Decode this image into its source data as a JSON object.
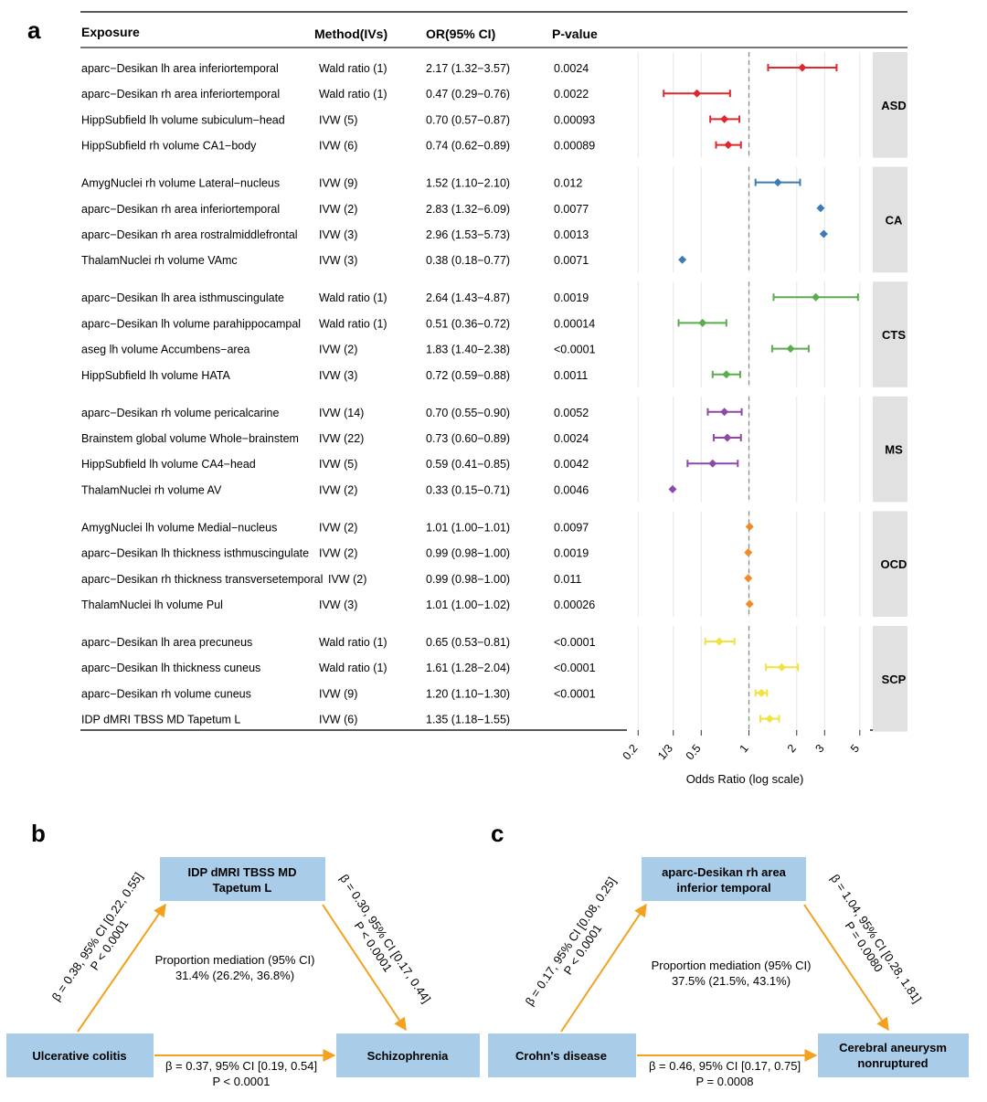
{
  "panel_labels": {
    "a": "a",
    "b": "b",
    "c": "c"
  },
  "colors": {
    "ASD": "#e0272b",
    "CA": "#3e7ab3",
    "CTS": "#5aac4c",
    "MS": "#8e48a6",
    "OCD": "#f08a24",
    "SCP": "#f2e23c",
    "mediation_arrow": "#f4a11f",
    "box_fill": "#a9cde8",
    "strip_fill": "#e1e1e1",
    "dashed_line": "#8c8c8c"
  },
  "chart_data": {
    "type": "forest",
    "scale": "log",
    "xlim": [
      0.17,
      5.8
    ],
    "reference_line": 1,
    "xlabel": "Odds Ratio (log scale)",
    "ticks": [
      {
        "value": 0.2,
        "label": "0.2"
      },
      {
        "value": 0.3333,
        "label": "1/3"
      },
      {
        "value": 0.5,
        "label": "0.5"
      },
      {
        "value": 1,
        "label": "1"
      },
      {
        "value": 2,
        "label": "2"
      },
      {
        "value": 3,
        "label": "3"
      },
      {
        "value": 5,
        "label": "5"
      }
    ],
    "headers": {
      "exposure": "Exposure",
      "method": "Method(IVs)",
      "or": "OR(95% CI)",
      "pvalue": "P-value"
    },
    "groups": [
      {
        "name": "ASD",
        "rows": [
          {
            "exposure": "aparc−Desikan lh area inferiortemporal",
            "method": "Wald ratio (1)",
            "or_text": "2.17 (1.32−3.57)",
            "p": "0.0024",
            "or": 2.17,
            "lo": 1.32,
            "hi": 3.57
          },
          {
            "exposure": "aparc−Desikan rh area inferiortemporal",
            "method": "Wald ratio (1)",
            "or_text": "0.47 (0.29−0.76)",
            "p": "0.0022",
            "or": 0.47,
            "lo": 0.29,
            "hi": 0.76
          },
          {
            "exposure": "HippSubfield lh volume subiculum−head",
            "method": "IVW (5)",
            "or_text": "0.70 (0.57−0.87)",
            "p": "0.00093",
            "or": 0.7,
            "lo": 0.57,
            "hi": 0.87
          },
          {
            "exposure": "HippSubfield rh volume CA1−body",
            "method": "IVW (6)",
            "or_text": "0.74 (0.62−0.89)",
            "p": "0.00089",
            "or": 0.74,
            "lo": 0.62,
            "hi": 0.89
          }
        ]
      },
      {
        "name": "CA",
        "rows": [
          {
            "exposure": "AmygNuclei rh volume Lateral−nucleus",
            "method": "IVW (9)",
            "or_text": "1.52 (1.10−2.10)",
            "p": "0.012",
            "or": 1.52,
            "lo": 1.1,
            "hi": 2.1
          },
          {
            "exposure": "aparc−Desikan rh area inferiortemporal",
            "method": "IVW (2)",
            "or_text": "2.83 (1.32−6.09)",
            "p": "0.0077",
            "or": 2.83,
            "lo": null,
            "hi": null
          },
          {
            "exposure": "aparc−Desikan rh area rostralmiddlefrontal",
            "method": "IVW (3)",
            "or_text": "2.96 (1.53−5.73)",
            "p": "0.0013",
            "or": 2.96,
            "lo": null,
            "hi": null
          },
          {
            "exposure": "ThalamNuclei rh volume VAmc",
            "method": "IVW (3)",
            "or_text": "0.38 (0.18−0.77)",
            "p": "0.0071",
            "or": 0.38,
            "lo": null,
            "hi": null
          }
        ]
      },
      {
        "name": "CTS",
        "rows": [
          {
            "exposure": "aparc−Desikan lh area isthmuscingulate",
            "method": "Wald ratio (1)",
            "or_text": "2.64 (1.43−4.87)",
            "p": "0.0019",
            "or": 2.64,
            "lo": 1.43,
            "hi": 4.87
          },
          {
            "exposure": "aparc−Desikan lh volume parahippocampal",
            "method": "Wald ratio (1)",
            "or_text": "0.51 (0.36−0.72)",
            "p": "0.00014",
            "or": 0.51,
            "lo": 0.36,
            "hi": 0.72
          },
          {
            "exposure": "aseg lh volume Accumbens−area",
            "method": "IVW (2)",
            "or_text": "1.83 (1.40−2.38)",
            "p": "<0.0001",
            "or": 1.83,
            "lo": 1.4,
            "hi": 2.38
          },
          {
            "exposure": "HippSubfield lh volume HATA",
            "method": "IVW (3)",
            "or_text": "0.72 (0.59−0.88)",
            "p": "0.0011",
            "or": 0.72,
            "lo": 0.59,
            "hi": 0.88
          }
        ]
      },
      {
        "name": "MS",
        "rows": [
          {
            "exposure": "aparc−Desikan rh volume pericalcarine",
            "method": "IVW (14)",
            "or_text": "0.70 (0.55−0.90)",
            "p": "0.0052",
            "or": 0.7,
            "lo": 0.55,
            "hi": 0.9
          },
          {
            "exposure": "Brainstem global volume Whole−brainstem",
            "method": "IVW (22)",
            "or_text": "0.73 (0.60−0.89)",
            "p": "0.0024",
            "or": 0.73,
            "lo": 0.6,
            "hi": 0.89
          },
          {
            "exposure": "HippSubfield lh volume CA4−head",
            "method": "IVW (5)",
            "or_text": "0.59 (0.41−0.85)",
            "p": "0.0042",
            "or": 0.59,
            "lo": 0.41,
            "hi": 0.85
          },
          {
            "exposure": "ThalamNuclei rh volume AV",
            "method": "IVW (2)",
            "or_text": "0.33 (0.15−0.71)",
            "p": "0.0046",
            "or": 0.33,
            "lo": null,
            "hi": null
          }
        ]
      },
      {
        "name": "OCD",
        "rows": [
          {
            "exposure": "AmygNuclei lh volume Medial−nucleus",
            "method": "IVW (2)",
            "or_text": "1.01 (1.00−1.01)",
            "p": "0.0097",
            "or": 1.01,
            "lo": null,
            "hi": null
          },
          {
            "exposure": "aparc−Desikan lh thickness isthmuscingulate",
            "method": "IVW (2)",
            "or_text": "0.99 (0.98−1.00)",
            "p": "0.0019",
            "or": 0.99,
            "lo": null,
            "hi": null
          },
          {
            "exposure": "aparc−Desikan rh thickness transversetemporal",
            "method": "IVW (2)",
            "or_text": "0.99 (0.98−1.00)",
            "p": "0.011",
            "or": 0.99,
            "lo": null,
            "hi": null
          },
          {
            "exposure": "ThalamNuclei lh volume Pul",
            "method": "IVW (3)",
            "or_text": "1.01 (1.00−1.02)",
            "p": "0.00026",
            "or": 1.01,
            "lo": null,
            "hi": null
          }
        ]
      },
      {
        "name": "SCP",
        "rows": [
          {
            "exposure": "aparc−Desikan lh area precuneus",
            "method": "Wald ratio (1)",
            "or_text": "0.65 (0.53−0.81)",
            "p": "<0.0001",
            "or": 0.65,
            "lo": 0.53,
            "hi": 0.81
          },
          {
            "exposure": "aparc−Desikan lh thickness cuneus",
            "method": "Wald ratio (1)",
            "or_text": "1.61 (1.28−2.04)",
            "p": "<0.0001",
            "or": 1.61,
            "lo": 1.28,
            "hi": 2.04
          },
          {
            "exposure": "aparc−Desikan rh volume cuneus",
            "method": "IVW (9)",
            "or_text": "1.20 (1.10−1.30)",
            "p": "<0.0001",
            "or": 1.2,
            "lo": 1.1,
            "hi": 1.3
          },
          {
            "exposure": "IDP dMRI TBSS MD Tapetum L",
            "method": "IVW (6)",
            "or_text": "1.35 (1.18−1.55)",
            "p": "",
            "or": 1.35,
            "lo": 1.18,
            "hi": 1.55
          }
        ]
      }
    ]
  },
  "mediation": {
    "b": {
      "mediator_lines": [
        "IDP dMRI TBSS MD",
        "Tapetum L"
      ],
      "exposure": "Ulcerative colitis",
      "outcome": "Schizophrenia",
      "left_label": [
        "β = 0.38, 95% CI [0.22, 0.55]",
        "P < 0.0001"
      ],
      "right_label": [
        "β = 0.30, 95% CI [0.17, 0.44]",
        "P < 0.0001"
      ],
      "bottom_label": [
        "β = 0.37, 95% CI [0.19, 0.54]",
        "P < 0.0001"
      ],
      "proportion_title": "Proportion mediation (95% CI)",
      "proportion_value": "31.4% (26.2%, 36.8%)"
    },
    "c": {
      "mediator_lines": [
        "aparc-Desikan rh area",
        "inferior temporal"
      ],
      "exposure": "Crohn's disease",
      "outcome_lines": [
        "Cerebral aneurysm",
        "nonruptured"
      ],
      "left_label": [
        "β = 0.17, 95% CI [0.08, 0.25]",
        "P < 0.0001"
      ],
      "right_label": [
        "β = 1.04, 95% CI [0.28, 1.81]",
        "P = 0.0080"
      ],
      "bottom_label": [
        "β = 0.46, 95% CI [0.17, 0.75]",
        "P = 0.0008"
      ],
      "proportion_title": "Proportion mediation (95% CI)",
      "proportion_value": "37.5% (21.5%, 43.1%)"
    }
  }
}
